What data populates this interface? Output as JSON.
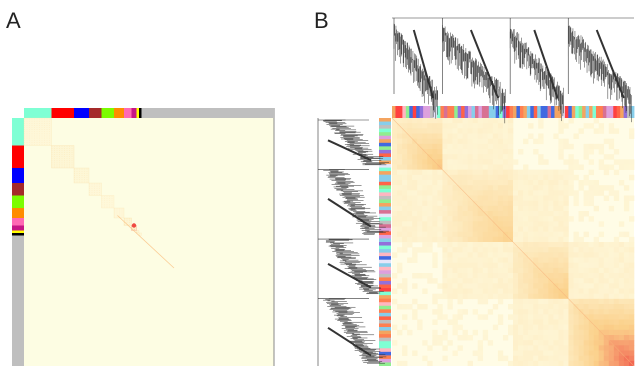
{
  "panel_labels": {
    "a": "A",
    "b": "B"
  },
  "colors": {
    "matrix_background": "#fdfde3",
    "heat_low": "#fffbe0",
    "heat_mid": "#fbd08a",
    "heat_high": "#ee3a3a",
    "unassigned_gray": "#bfbfbf",
    "dendrogram": "#333333"
  },
  "chart_data": [
    {
      "type": "heatmap",
      "panel": "A",
      "title": "",
      "xlabel": "",
      "ylabel": "",
      "grid": false,
      "legend": "none",
      "module_colors": [
        "#7fffd4",
        "#ff0000",
        "#0000ff",
        "#a52a2a",
        "#7cfc00",
        "#ff8c00",
        "#ff69b4",
        "#c71585",
        "#ffff00",
        "#000000",
        "#bfbfbf"
      ],
      "module_sizes": [
        11,
        9,
        6,
        5,
        5,
        4,
        3,
        2,
        1,
        1,
        53
      ],
      "diagonal_intensity": [
        0.35,
        0.45,
        0.4,
        0.35,
        0.3,
        0.35,
        0.5,
        0.9,
        0.4,
        0.3,
        0.1
      ]
    },
    {
      "type": "heatmap",
      "panel": "B",
      "title": "",
      "xlabel": "",
      "ylabel": "",
      "grid": false,
      "legend": "none",
      "dendrogram": "top-and-left",
      "block_sizes": [
        20,
        28,
        24,
        28
      ],
      "block_intensity": [
        0.55,
        0.45,
        0.5,
        0.85
      ],
      "module_colors": [
        "#d87093",
        "#7fffd4",
        "#ff7f50",
        "#9370db",
        "#bfbfbf",
        "#90ee90",
        "#ffb6c1",
        "#4169e1",
        "#ff6347",
        "#dda0dd",
        "#87ceeb",
        "#f4a460",
        "#e6e6fa",
        "#ff4040"
      ]
    }
  ]
}
